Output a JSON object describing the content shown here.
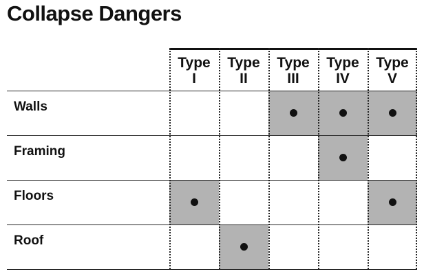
{
  "title": "Collapse Dangers",
  "columns": [
    {
      "line1": "Type",
      "line2": "I"
    },
    {
      "line1": "Type",
      "line2": "II"
    },
    {
      "line1": "Type",
      "line2": "III"
    },
    {
      "line1": "Type",
      "line2": "IV"
    },
    {
      "line1": "Type",
      "line2": "V"
    }
  ],
  "rows": [
    {
      "label": "Walls",
      "marks": [
        false,
        false,
        true,
        true,
        true
      ]
    },
    {
      "label": "Framing",
      "marks": [
        false,
        false,
        false,
        true,
        false
      ]
    },
    {
      "label": "Floors",
      "marks": [
        true,
        false,
        false,
        false,
        true
      ]
    },
    {
      "label": "Roof",
      "marks": [
        false,
        true,
        false,
        false,
        false
      ]
    }
  ],
  "colors": {
    "shade": "#b3b3b3",
    "dot": "#111111"
  }
}
